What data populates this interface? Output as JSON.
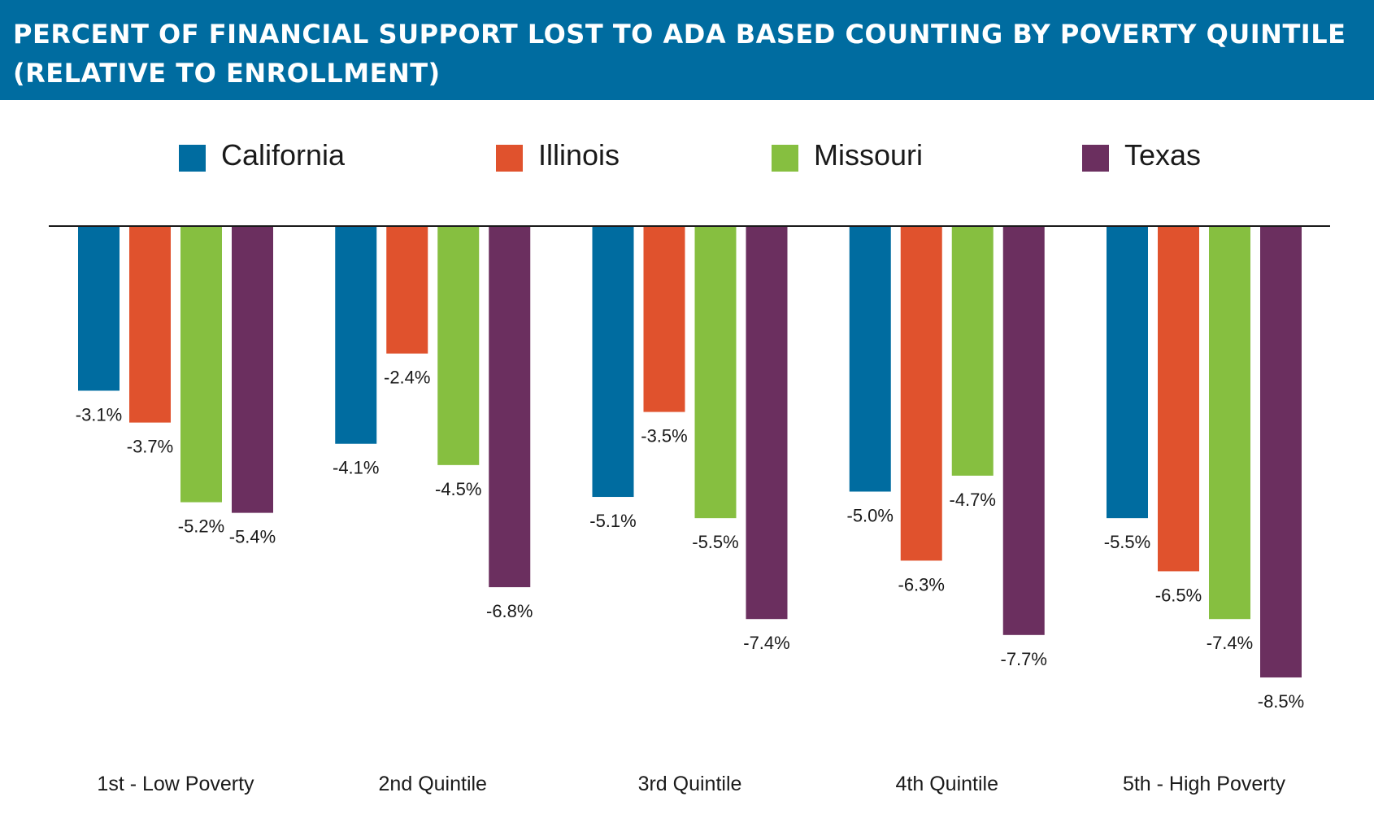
{
  "header": {
    "title_line1": "PERCENT OF FINANCIAL SUPPORT LOST TO ADA BASED COUNTING BY POVERTY QUINTILE",
    "title_line2": "(RELATIVE TO ENROLLMENT)"
  },
  "chart_data": {
    "type": "bar",
    "title": "PERCENT OF FINANCIAL SUPPORT LOST TO ADA BASED COUNTING BY POVERTY QUINTILE (RELATIVE TO ENROLLMENT)",
    "categories": [
      "1st - Low Poverty",
      "2nd Quintile",
      "3rd Quintile",
      "4th Quintile",
      "5th - High Poverty"
    ],
    "series": [
      {
        "name": "California",
        "color": "#006ca0",
        "values": [
          -3.1,
          -4.1,
          -5.1,
          -5.0,
          -5.5
        ],
        "labels": [
          "-3.1%",
          "-4.1%",
          "-5.1%",
          "-5.0%",
          "-5.5%"
        ]
      },
      {
        "name": "Illinois",
        "color": "#e0522d",
        "values": [
          -3.7,
          -2.4,
          -3.5,
          -6.3,
          -6.5
        ],
        "labels": [
          "-3.7%",
          "-2.4%",
          "-3.5%",
          "-6.3%",
          "-6.5%"
        ]
      },
      {
        "name": "Missouri",
        "color": "#86bf40",
        "values": [
          -5.2,
          -4.5,
          -5.5,
          -4.7,
          -7.4
        ],
        "labels": [
          "-5.2%",
          "-4.5%",
          "-5.5%",
          "-4.7%",
          "-7.4%"
        ]
      },
      {
        "name": "Texas",
        "color": "#6b2f5f",
        "values": [
          -5.4,
          -6.8,
          -7.4,
          -7.7,
          -8.5
        ],
        "labels": [
          "-5.4%",
          "-6.8%",
          "-7.4%",
          "-7.7%",
          "-8.5%"
        ]
      }
    ],
    "ylim": [
      -8.5,
      0
    ],
    "grid": false,
    "legend_position": "top",
    "baseline_color": "#1a1a1a"
  }
}
